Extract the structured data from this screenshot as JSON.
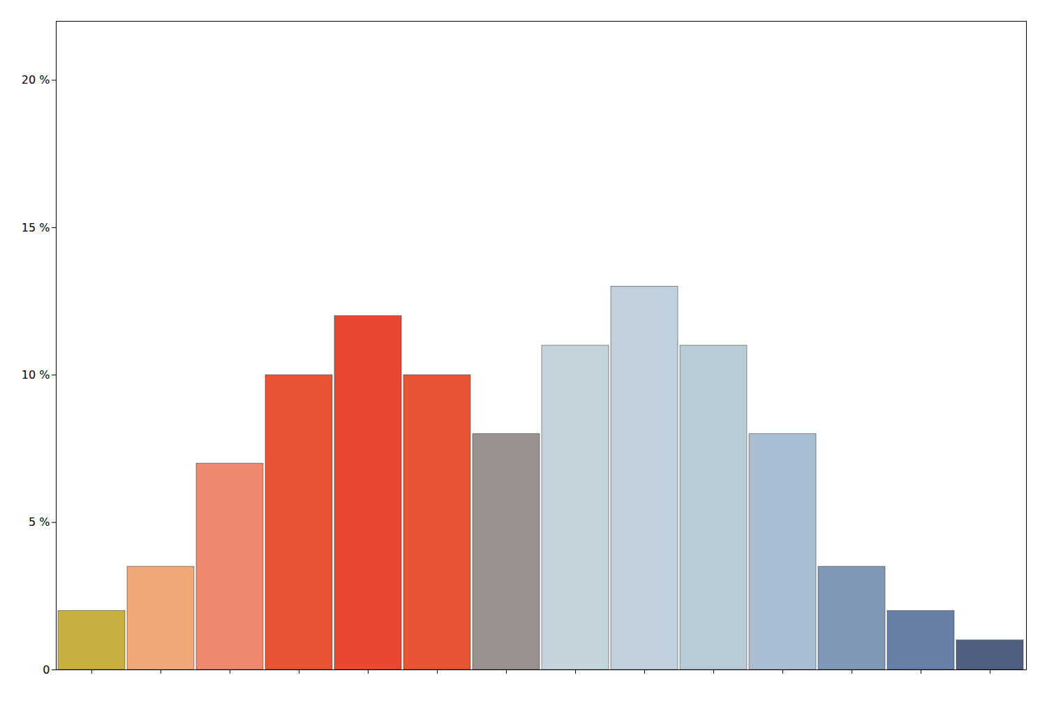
{
  "chart_data": {
    "type": "bar",
    "categories": [
      null,
      null,
      null,
      null,
      null,
      null,
      null,
      null,
      null,
      null,
      null,
      null,
      null,
      null
    ],
    "values": [
      2,
      3.5,
      7,
      10,
      12,
      10,
      8,
      11,
      13,
      11,
      8,
      3.5,
      2,
      1
    ],
    "colors": [
      "#C8B040",
      "#F0A878",
      "#F08870",
      "#E85535",
      "#E84830",
      "#E85535",
      "#9A9090",
      "#C4D3DC",
      "#C0D0DC",
      "#B8CCD8",
      "#A8BDD0",
      "#8098B8",
      "#6880A8",
      "#506080"
    ],
    "ylim": [
      0,
      22
    ],
    "yticks": [
      0,
      {
        "value": 5,
        "label": "5 %"
      },
      {
        "value": 10,
        "label": "10 %"
      },
      {
        "value": 15,
        "label": "15 %"
      },
      {
        "value": 20,
        "label": "20 %"
      }
    ],
    "tick_labels": "y"
  }
}
